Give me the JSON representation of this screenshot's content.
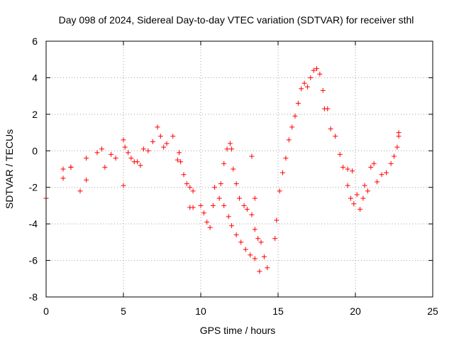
{
  "chart_data": {
    "type": "scatter",
    "title": "Day 098 of 2024, Sidereal Day-to-day VTEC variation (SDTVAR) for receiver sthl",
    "xlabel": "GPS time / hours",
    "ylabel": "SDTVAR / TECUs",
    "xlim": [
      0,
      25
    ],
    "ylim": [
      -8,
      6
    ],
    "xticks": [
      0,
      5,
      10,
      15,
      20,
      25
    ],
    "yticks": [
      -8,
      -6,
      -4,
      -2,
      0,
      2,
      4,
      6
    ],
    "xtick_labels": [
      "0",
      "5",
      "10",
      "15",
      "20",
      "25"
    ],
    "ytick_labels": [
      "-8",
      "-6",
      "-4",
      "-2",
      "0",
      "2",
      "4",
      "6"
    ],
    "grid": true,
    "marker": "plus",
    "color": "#ff0000",
    "series": [
      {
        "name": "SDTVAR",
        "x": [
          0.0,
          1.1,
          1.1,
          1.6,
          1.6,
          2.2,
          2.6,
          2.6,
          3.3,
          3.6,
          3.8,
          4.2,
          4.5,
          5.0,
          5.0,
          5.1,
          5.3,
          5.5,
          5.7,
          5.9,
          6.1,
          6.3,
          6.6,
          6.9,
          7.2,
          7.4,
          7.6,
          7.8,
          8.2,
          8.5,
          8.6,
          8.7,
          8.9,
          9.1,
          9.3,
          9.5,
          9.3,
          9.5,
          10.0,
          10.2,
          10.4,
          10.6,
          10.8,
          10.9,
          11.2,
          11.3,
          11.5,
          11.7,
          11.9,
          12.0,
          12.1,
          12.3,
          12.5,
          12.8,
          13.0,
          13.3,
          13.5,
          13.7,
          13.9,
          14.1,
          14.3,
          11.5,
          11.8,
          12.0,
          12.3,
          12.6,
          12.9,
          13.2,
          13.5,
          13.8,
          13.3,
          13.5,
          14.8,
          14.9,
          15.1,
          15.3,
          15.5,
          15.7,
          15.9,
          16.1,
          16.3,
          16.5,
          16.7,
          16.9,
          17.1,
          17.3,
          17.5,
          17.7,
          17.9,
          18.0,
          18.2,
          18.4,
          18.7,
          19.0,
          19.2,
          19.5,
          19.8,
          19.5,
          19.7,
          19.9,
          20.1,
          20.3,
          20.5,
          20.6,
          20.8,
          21.0,
          21.2,
          21.4,
          21.7,
          22.0,
          22.3,
          22.5,
          22.7,
          22.8,
          22.8
        ],
        "y": [
          -2.6,
          -1.0,
          -1.5,
          -0.9,
          -0.9,
          -2.2,
          -0.4,
          -1.6,
          -0.1,
          0.1,
          -0.9,
          -0.2,
          -0.4,
          0.6,
          -1.9,
          0.2,
          -0.1,
          -0.4,
          -0.6,
          -0.6,
          -0.8,
          0.1,
          0.0,
          0.5,
          1.3,
          0.8,
          0.2,
          0.4,
          0.8,
          -0.5,
          -0.1,
          -0.6,
          -1.3,
          -1.8,
          -2.0,
          -2.2,
          -3.1,
          -3.1,
          -3.0,
          -3.4,
          -3.9,
          -4.2,
          -3.0,
          -2.0,
          -2.6,
          -1.8,
          -0.7,
          0.1,
          0.4,
          0.1,
          -1.0,
          -1.8,
          -2.6,
          -3.0,
          -3.2,
          -3.5,
          -4.3,
          -4.8,
          -5.0,
          -5.8,
          -6.4,
          -3.0,
          -3.6,
          -4.1,
          -4.6,
          -5.0,
          -5.4,
          -5.7,
          -5.9,
          -6.6,
          -0.3,
          -2.6,
          -4.8,
          -3.8,
          -2.2,
          -1.2,
          -0.4,
          0.6,
          1.3,
          1.9,
          2.6,
          3.4,
          3.7,
          3.5,
          4.0,
          4.4,
          4.5,
          4.2,
          3.3,
          2.3,
          2.3,
          1.2,
          0.8,
          -0.2,
          -0.9,
          -1.0,
          -1.1,
          -1.9,
          -2.6,
          -2.9,
          -2.4,
          -3.2,
          -2.6,
          -1.9,
          -2.2,
          -0.9,
          -0.7,
          -1.7,
          -1.3,
          -1.2,
          -0.7,
          -0.3,
          0.2,
          0.8,
          1.0
        ]
      }
    ]
  }
}
